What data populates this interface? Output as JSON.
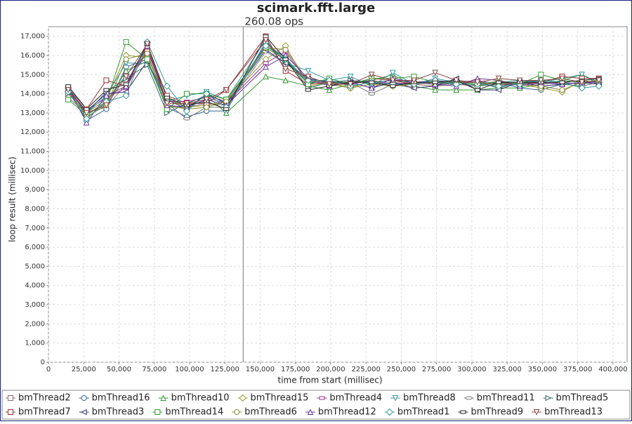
{
  "chart_data": {
    "type": "line",
    "title": "scimark.fft.large",
    "annotation": {
      "text": "260.08 ops",
      "x": 138000
    },
    "x_label": "time from start (millisec)",
    "y_label": "loop result (millisec)",
    "x": [
      14000,
      27000,
      41000,
      55000,
      70000,
      84000,
      98000,
      112000,
      126000,
      154000,
      168000,
      184000,
      199000,
      214000,
      229000,
      244000,
      259000,
      274000,
      289000,
      304000,
      319000,
      334000,
      349000,
      364000,
      378000,
      390000
    ],
    "xlim": [
      0,
      410000
    ],
    "ylim": [
      0,
      17500
    ],
    "xticks": [
      0,
      {
        "value": 25000,
        "label": "25,000"
      },
      {
        "value": 50000,
        "label": "50,000"
      },
      {
        "value": 75000,
        "label": "75,000"
      },
      {
        "value": 100000,
        "label": "100,000"
      },
      {
        "value": 125000,
        "label": "125,000"
      },
      {
        "value": 150000,
        "label": "150,000"
      },
      {
        "value": 175000,
        "label": "175,000"
      },
      {
        "value": 200000,
        "label": "200,000"
      },
      {
        "value": 225000,
        "label": "225,000"
      },
      {
        "value": 250000,
        "label": "250,000"
      },
      {
        "value": 275000,
        "label": "275,000"
      },
      {
        "value": 300000,
        "label": "300,000"
      },
      {
        "value": 325000,
        "label": "325,000"
      },
      {
        "value": 350000,
        "label": "350,000"
      },
      {
        "value": 375000,
        "label": "375,000"
      },
      {
        "value": 400000,
        "label": "400,000"
      }
    ],
    "yticks": [
      0,
      {
        "value": 1000,
        "label": "1,000"
      },
      {
        "value": 2000,
        "label": "2,000"
      },
      {
        "value": 3000,
        "label": "3,000"
      },
      {
        "value": 4000,
        "label": "4,000"
      },
      {
        "value": 5000,
        "label": "5,000"
      },
      {
        "value": 6000,
        "label": "6,000"
      },
      {
        "value": 7000,
        "label": "7,000"
      },
      {
        "value": 8000,
        "label": "8,000"
      },
      {
        "value": 9000,
        "label": "9,000"
      },
      {
        "value": 10000,
        "label": "10,000"
      },
      {
        "value": 11000,
        "label": "11,000"
      },
      {
        "value": 12000,
        "label": "12,000"
      },
      {
        "value": 13000,
        "label": "13,000"
      },
      {
        "value": 14000,
        "label": "14,000"
      },
      {
        "value": 15000,
        "label": "15,000"
      },
      {
        "value": 16000,
        "label": "16,000"
      },
      {
        "value": 17000,
        "label": "17,000"
      }
    ],
    "grid": true,
    "series": [
      {
        "name": "bmThread2",
        "color": "#8b6f6f",
        "marker": "square",
        "values": [
          13800,
          13000,
          13300,
          14500,
          16400,
          13800,
          13300,
          13500,
          13400,
          16600,
          15900,
          14500,
          14600,
          14700,
          14500,
          14600,
          14500,
          14400,
          14600,
          14500,
          14400,
          14600,
          14500,
          14600,
          14700,
          14600
        ]
      },
      {
        "name": "bmThread16",
        "color": "#336699",
        "marker": "circle",
        "values": [
          14200,
          12600,
          13200,
          15400,
          15800,
          13300,
          12800,
          13100,
          13100,
          16700,
          15700,
          14600,
          14600,
          14600,
          14700,
          14500,
          14600,
          14600,
          14500,
          14400,
          14600,
          14300,
          14200,
          14500,
          14400,
          14600
        ]
      },
      {
        "name": "bmThread10",
        "color": "#339933",
        "marker": "up",
        "values": [
          14100,
          12900,
          13500,
          15200,
          15700,
          13300,
          13300,
          13900,
          13000,
          14900,
          14700,
          14400,
          14200,
          14500,
          14700,
          15000,
          14400,
          14200,
          14200,
          14200,
          14300,
          14300,
          14500,
          14700,
          15000,
          14500
        ]
      },
      {
        "name": "bmThread15",
        "color": "#999933",
        "marker": "diamond",
        "values": [
          14300,
          13000,
          13700,
          16000,
          15900,
          13700,
          13300,
          13400,
          13600,
          15800,
          16500,
          14400,
          14600,
          14300,
          14500,
          14400,
          14600,
          14500,
          14600,
          14500,
          14400,
          14500,
          14300,
          14100,
          14700,
          14600
        ]
      },
      {
        "name": "bmThread4",
        "color": "#993399",
        "marker": "rect",
        "values": [
          14200,
          13100,
          13800,
          14300,
          16300,
          13600,
          13600,
          13800,
          13500,
          15600,
          16200,
          14600,
          14700,
          14500,
          14700,
          14500,
          14600,
          14700,
          14600,
          14700,
          14500,
          14600,
          14600,
          14500,
          14600,
          14500
        ]
      },
      {
        "name": "bmThread8",
        "color": "#3399aa",
        "marker": "down",
        "values": [
          14300,
          13000,
          13900,
          15600,
          15600,
          13600,
          13900,
          14100,
          13700,
          16800,
          15600,
          15200,
          14700,
          14900,
          14400,
          15100,
          14500,
          14800,
          14600,
          14600,
          14600,
          14700,
          14600,
          14800,
          15000,
          14600
        ]
      },
      {
        "name": "bmThread11",
        "color": "#777777",
        "marker": "ellipse",
        "values": [
          14100,
          12900,
          13500,
          15000,
          16100,
          13500,
          12700,
          13300,
          13300,
          16200,
          15600,
          14700,
          14500,
          14600,
          14000,
          14500,
          14300,
          14400,
          14500,
          14400,
          14500,
          14600,
          14400,
          14500,
          14400,
          14600
        ]
      },
      {
        "name": "bmThread5",
        "color": "#336666",
        "marker": "right",
        "values": [
          14000,
          13000,
          14100,
          14800,
          15500,
          13000,
          13500,
          13900,
          13600,
          16500,
          15900,
          14300,
          14600,
          14700,
          14600,
          14700,
          14600,
          14500,
          14600,
          14600,
          14300,
          14600,
          14700,
          14600,
          14500,
          14700
        ]
      },
      {
        "name": "bmThread7",
        "color": "#993333",
        "marker": "square",
        "values": [
          14300,
          13200,
          14700,
          14400,
          16200,
          13900,
          13500,
          13500,
          14200,
          17000,
          15200,
          14500,
          14600,
          14500,
          14800,
          14700,
          14500,
          14600,
          14600,
          14600,
          14500,
          14500,
          14600,
          14900,
          14800,
          14800
        ]
      },
      {
        "name": "bmThread3",
        "color": "#333366",
        "marker": "left",
        "values": [
          14200,
          13100,
          14000,
          14100,
          15700,
          13700,
          13200,
          14000,
          13500,
          16300,
          15600,
          14800,
          14600,
          14600,
          14300,
          14600,
          14300,
          14400,
          14800,
          14200,
          14200,
          14600,
          14400,
          14500,
          14600,
          14500
        ]
      },
      {
        "name": "bmThread14",
        "color": "#339933",
        "marker": "square",
        "values": [
          13700,
          12900,
          13600,
          16700,
          15800,
          13200,
          14000,
          14000,
          13700,
          16400,
          15800,
          14500,
          14800,
          14500,
          14800,
          14800,
          14900,
          14600,
          14600,
          14500,
          14600,
          14500,
          15000,
          14700,
          14600,
          14700
        ]
      },
      {
        "name": "bmThread6",
        "color": "#888833",
        "marker": "circle",
        "values": [
          14200,
          12800,
          13400,
          15800,
          16100,
          13400,
          13200,
          13300,
          13600,
          16400,
          16300,
          14700,
          14500,
          14300,
          14700,
          14400,
          14500,
          14600,
          14700,
          14400,
          14700,
          14500,
          14400,
          14200,
          14600,
          14700
        ]
      },
      {
        "name": "bmThread12",
        "color": "#663399",
        "marker": "up",
        "values": [
          14300,
          12500,
          13900,
          14400,
          16500,
          13400,
          13300,
          13700,
          13400,
          15400,
          16000,
          14800,
          14400,
          14600,
          14300,
          14800,
          14600,
          14500,
          14400,
          14800,
          14700,
          14400,
          14600,
          14500,
          14600,
          14600
        ]
      },
      {
        "name": "bmThread1",
        "color": "#339999",
        "marker": "diamond",
        "values": [
          14100,
          12700,
          13600,
          13900,
          16700,
          14400,
          13100,
          14000,
          13300,
          16500,
          15800,
          14700,
          14700,
          14400,
          14600,
          14500,
          14500,
          14700,
          14500,
          14500,
          14400,
          14500,
          14700,
          14600,
          14300,
          14400
        ]
      },
      {
        "name": "bmThread9",
        "color": "#222222",
        "marker": "rect",
        "values": [
          14400,
          13200,
          14200,
          14500,
          16600,
          13800,
          13400,
          13600,
          13200,
          17000,
          15800,
          14200,
          14400,
          14600,
          14600,
          14400,
          14600,
          14600,
          14700,
          14200,
          14600,
          14600,
          14600,
          14600,
          14700,
          14800
        ]
      },
      {
        "name": "bmThread13",
        "color": "#884444",
        "marker": "down",
        "values": [
          14200,
          13000,
          13400,
          14900,
          16600,
          13500,
          13500,
          13700,
          14200,
          16800,
          15300,
          14900,
          14500,
          14500,
          15000,
          14700,
          14700,
          15100,
          14700,
          14600,
          14800,
          14700,
          14700,
          14800,
          14600,
          14700
        ]
      }
    ]
  }
}
